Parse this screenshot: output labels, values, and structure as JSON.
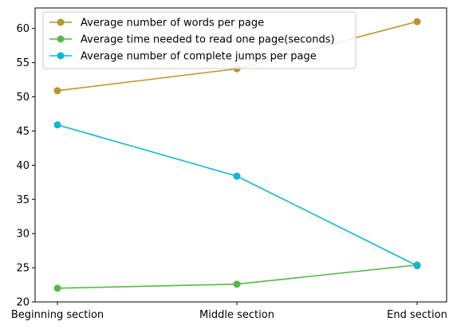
{
  "chart_data": {
    "type": "line",
    "categories": [
      "Beginning section",
      "Middle section",
      "End section"
    ],
    "series": [
      {
        "name": "Average number of words per page",
        "values": [
          50.9,
          54.1,
          61.0
        ],
        "color": "#b8962c"
      },
      {
        "name": "Average time needed to read one page(seconds)",
        "values": [
          22.0,
          22.6,
          25.4
        ],
        "color": "#56b847"
      },
      {
        "name": "Average number of complete jumps per page",
        "values": [
          45.9,
          38.4,
          25.3
        ],
        "color": "#10b6d6"
      }
    ],
    "ylim": [
      20,
      63
    ],
    "yticks": [
      "20",
      "25",
      "30",
      "35",
      "40",
      "45",
      "50",
      "55",
      "60"
    ],
    "grid": false,
    "legend_position": "top-left"
  }
}
